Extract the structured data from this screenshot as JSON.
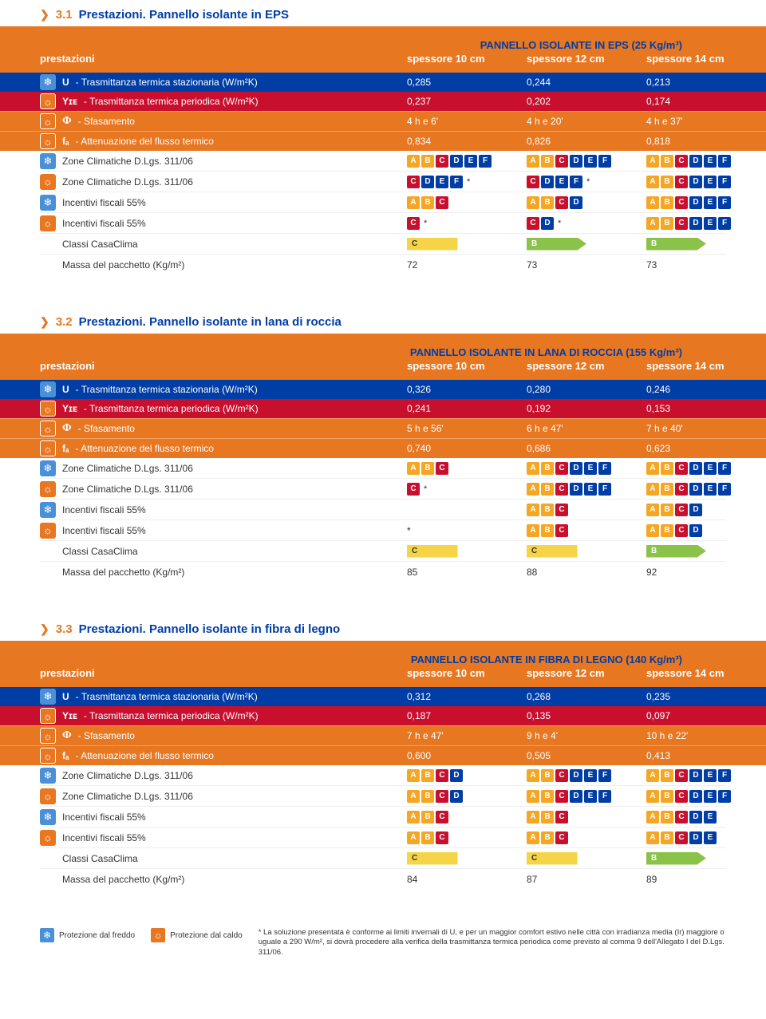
{
  "sections": [
    {
      "num": "3.1",
      "title": "Prestazioni. Pannello isolante in EPS",
      "table_title": "PANNELLO ISOLANTE IN EPS (25 Kg/m³)",
      "col_head": "prestazioni",
      "cols": [
        "spessore 10 cm",
        "spessore 12 cm",
        "spessore 14 cm"
      ],
      "rows": [
        {
          "icon": "cold",
          "bg": "blue",
          "k": "U",
          "desc": "- Trasmittanza termica stazionaria (W/m²K)",
          "v": [
            "0,285",
            "0,244",
            "0,213"
          ]
        },
        {
          "icon": "hot",
          "bg": "red",
          "k": "Yɪᴇ",
          "desc": "- Trasmittanza termica periodica (W/m²K)",
          "v": [
            "0,237",
            "0,202",
            "0,174"
          ]
        },
        {
          "icon": "hot",
          "bg": "orange",
          "k": "Φ",
          "desc": "- Sfasamento",
          "v": [
            "4 h e 6'",
            "4 h e 20'",
            "4 h e 37'"
          ]
        },
        {
          "icon": "hot",
          "bg": "orange",
          "k": "fₐ",
          "desc": "- Attenuazione del flusso termico",
          "v": [
            "0,834",
            "0,826",
            "0,818"
          ]
        }
      ],
      "wrows": [
        {
          "icon": "cold",
          "label": "Zone Climatiche D.Lgs. 311/06",
          "z": [
            [
              "A",
              "B",
              "C",
              "D",
              "E",
              "F"
            ],
            [
              "A",
              "B",
              "C",
              "D",
              "E",
              "F"
            ],
            [
              "A",
              "B",
              "C",
              "D",
              "E",
              "F"
            ]
          ],
          "star": [
            false,
            false,
            false
          ]
        },
        {
          "icon": "hot",
          "label": "Zone Climatiche D.Lgs. 311/06",
          "z": [
            [
              "C",
              "D",
              "E",
              "F"
            ],
            [
              "C",
              "D",
              "E",
              "F"
            ],
            [
              "A",
              "B",
              "C",
              "D",
              "E",
              "F"
            ]
          ],
          "star": [
            true,
            true,
            false
          ]
        },
        {
          "icon": "cold",
          "label": "Incentivi fiscali 55%",
          "z": [
            [
              "A",
              "B",
              "C"
            ],
            [
              "A",
              "B",
              "C",
              "D"
            ],
            [
              "A",
              "B",
              "C",
              "D",
              "E",
              "F"
            ]
          ],
          "star": [
            false,
            false,
            false
          ]
        },
        {
          "icon": "hot",
          "label": "Incentivi fiscali 55%",
          "z": [
            [
              "C"
            ],
            [
              "C",
              "D"
            ],
            [
              "A",
              "B",
              "C",
              "D",
              "E",
              "F"
            ]
          ],
          "star": [
            true,
            true,
            false
          ]
        },
        {
          "label": "Classi CasaClima",
          "casa": [
            "C",
            "B",
            "B"
          ]
        },
        {
          "label": "Massa del pacchetto (Kg/m²)",
          "v": [
            "72",
            "73",
            "73"
          ]
        }
      ]
    },
    {
      "num": "3.2",
      "title": "Prestazioni. Pannello isolante in lana di roccia",
      "table_title": "PANNELLO ISOLANTE IN LANA DI ROCCIA (155 Kg/m³)",
      "col_head": "prestazioni",
      "cols": [
        "spessore 10 cm",
        "spessore 12 cm",
        "spessore 14 cm"
      ],
      "rows": [
        {
          "icon": "cold",
          "bg": "blue",
          "k": "U",
          "desc": "- Trasmittanza termica stazionaria (W/m²K)",
          "v": [
            "0,326",
            "0,280",
            "0,246"
          ]
        },
        {
          "icon": "hot",
          "bg": "red",
          "k": "Yɪᴇ",
          "desc": "- Trasmittanza termica periodica (W/m²K)",
          "v": [
            "0,241",
            "0,192",
            "0,153"
          ]
        },
        {
          "icon": "hot",
          "bg": "orange",
          "k": "Φ",
          "desc": "- Sfasamento",
          "v": [
            "5 h e 56'",
            "6 h e 47'",
            "7 h e 40'"
          ]
        },
        {
          "icon": "hot",
          "bg": "orange",
          "k": "fₐ",
          "desc": "- Attenuazione del flusso termico",
          "v": [
            "0,740",
            "0,686",
            "0,623"
          ]
        }
      ],
      "wrows": [
        {
          "icon": "cold",
          "label": "Zone Climatiche D.Lgs. 311/06",
          "z": [
            [
              "A",
              "B",
              "C"
            ],
            [
              "A",
              "B",
              "C",
              "D",
              "E",
              "F"
            ],
            [
              "A",
              "B",
              "C",
              "D",
              "E",
              "F"
            ]
          ],
          "star": [
            false,
            false,
            false
          ]
        },
        {
          "icon": "hot",
          "label": "Zone Climatiche D.Lgs. 311/06",
          "z": [
            [
              "C"
            ],
            [
              "A",
              "B",
              "C",
              "D",
              "E",
              "F"
            ],
            [
              "A",
              "B",
              "C",
              "D",
              "E",
              "F"
            ]
          ],
          "star": [
            true,
            false,
            false
          ]
        },
        {
          "icon": "cold",
          "label": "Incentivi fiscali 55%",
          "z": [
            [],
            [
              "A",
              "B",
              "C"
            ],
            [
              "A",
              "B",
              "C",
              "D"
            ]
          ],
          "star": [
            false,
            false,
            false
          ]
        },
        {
          "icon": "hot",
          "label": "Incentivi fiscali 55%",
          "z": [
            [],
            [
              "A",
              "B",
              "C"
            ],
            [
              "A",
              "B",
              "C",
              "D"
            ]
          ],
          "star": [
            true,
            false,
            false
          ],
          "starlabel": [
            "*",
            "",
            ""
          ]
        },
        {
          "label": "Classi CasaClima",
          "casa": [
            "C",
            "C",
            "B"
          ]
        },
        {
          "label": "Massa del pacchetto (Kg/m²)",
          "v": [
            "85",
            "88",
            "92"
          ]
        }
      ]
    },
    {
      "num": "3.3",
      "title": "Prestazioni. Pannello isolante in fibra di legno",
      "table_title": "PANNELLO ISOLANTE IN FIBRA DI LEGNO (140 Kg/m³)",
      "col_head": "prestazioni",
      "cols": [
        "spessore 10 cm",
        "spessore 12 cm",
        "spessore 14 cm"
      ],
      "rows": [
        {
          "icon": "cold",
          "bg": "blue",
          "k": "U",
          "desc": "- Trasmittanza termica stazionaria (W/m²K)",
          "v": [
            "0,312",
            "0,268",
            "0,235"
          ]
        },
        {
          "icon": "hot",
          "bg": "red",
          "k": "Yɪᴇ",
          "desc": "- Trasmittanza termica periodica (W/m²K)",
          "v": [
            "0,187",
            "0,135",
            "0,097"
          ]
        },
        {
          "icon": "hot",
          "bg": "orange",
          "k": "Φ",
          "desc": "- Sfasamento",
          "v": [
            "7 h e 47'",
            "9 h e 4'",
            "10 h e 22'"
          ]
        },
        {
          "icon": "hot",
          "bg": "orange",
          "k": "fₐ",
          "desc": "- Attenuazione del flusso termico",
          "v": [
            "0,600",
            "0,505",
            "0,413"
          ]
        }
      ],
      "wrows": [
        {
          "icon": "cold",
          "label": "Zone Climatiche D.Lgs. 311/06",
          "z": [
            [
              "A",
              "B",
              "C",
              "D"
            ],
            [
              "A",
              "B",
              "C",
              "D",
              "E",
              "F"
            ],
            [
              "A",
              "B",
              "C",
              "D",
              "E",
              "F"
            ]
          ],
          "star": [
            false,
            false,
            false
          ]
        },
        {
          "icon": "hot",
          "label": "Zone Climatiche D.Lgs. 311/06",
          "z": [
            [
              "A",
              "B",
              "C",
              "D"
            ],
            [
              "A",
              "B",
              "C",
              "D",
              "E",
              "F"
            ],
            [
              "A",
              "B",
              "C",
              "D",
              "E",
              "F"
            ]
          ],
          "star": [
            false,
            false,
            false
          ]
        },
        {
          "icon": "cold",
          "label": "Incentivi fiscali 55%",
          "z": [
            [
              "A",
              "B",
              "C"
            ],
            [
              "A",
              "B",
              "C"
            ],
            [
              "A",
              "B",
              "C",
              "D",
              "E"
            ]
          ],
          "star": [
            false,
            false,
            false
          ]
        },
        {
          "icon": "hot",
          "label": "Incentivi fiscali 55%",
          "z": [
            [
              "A",
              "B",
              "C"
            ],
            [
              "A",
              "B",
              "C"
            ],
            [
              "A",
              "B",
              "C",
              "D",
              "E"
            ]
          ],
          "star": [
            false,
            false,
            false
          ]
        },
        {
          "label": "Classi CasaClima",
          "casa": [
            "C",
            "C",
            "B"
          ]
        },
        {
          "label": "Massa del pacchetto (Kg/m²)",
          "v": [
            "84",
            "87",
            "89"
          ]
        }
      ]
    }
  ],
  "legend": {
    "cold": "Protezione dal freddo",
    "hot": "Protezione dal caldo",
    "note": "* La soluzione presentata è conforme ai limiti invernali di U, e per un maggior comfort estivo nelle città con irradianza media (Ir) maggiore o uguale a 290 W/m², si dovrà procedere alla verifica della trasmittanza termica periodica come previsto al comma 9 dell'Allegato I del D.Lgs. 311/06."
  },
  "colors": {
    "orange": "#e87722",
    "blue": "#003da5",
    "red": "#c8102e",
    "zA": "#f5a623",
    "zB": "#f5a623",
    "zC": "#c8102e",
    "zD": "#003da5",
    "zE": "#003da5",
    "zF": "#003da5",
    "casa_yellow": "#f5d547",
    "casa_green": "#8bc34a"
  }
}
